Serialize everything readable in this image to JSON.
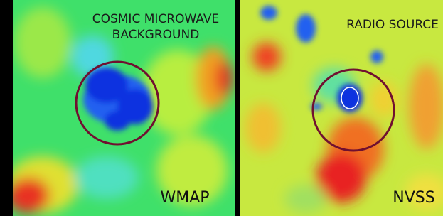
{
  "panels": [
    {
      "title_lines": [
        "COSMIC MICROWAVE",
        "BACKGROUND"
      ],
      "label": "WMAP"
    },
    {
      "title_lines": [
        "RADIO SOURCE"
      ],
      "label": "NVSS"
    }
  ]
}
